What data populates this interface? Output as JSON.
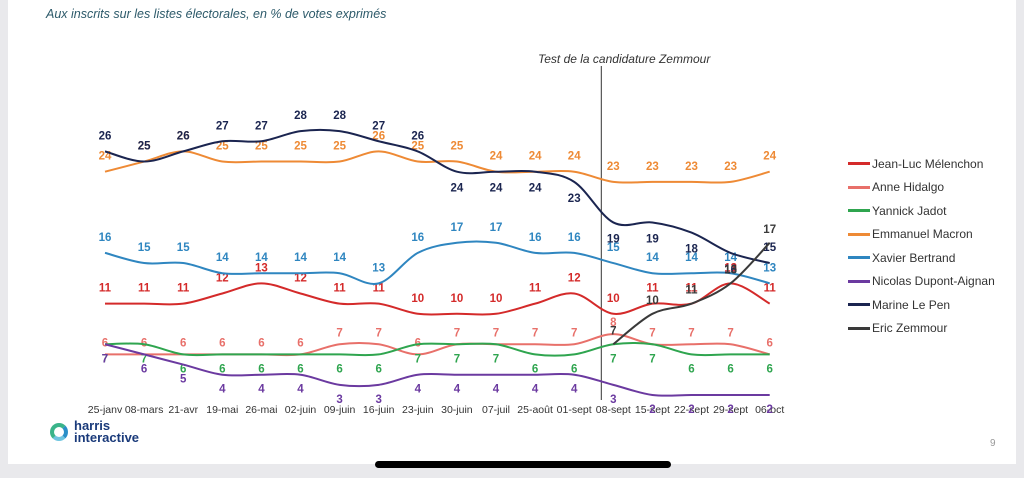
{
  "slide": {
    "subtitle": "Aux inscrits sur les listes électorales, en % de votes exprimés",
    "annotation": "Test de la candidature Zemmour",
    "logo_line1": "harris",
    "logo_line2": "interactive",
    "page_number": "9"
  },
  "chart_data": {
    "type": "line",
    "title": "",
    "subtitle": "Aux inscrits sur les listes électorales, en % de votes exprimés",
    "xlabel": "",
    "ylabel": "",
    "ylim": [
      0,
      30
    ],
    "grid": false,
    "legend_position": "right",
    "annotations": [
      {
        "text": "Test de la candidature Zemmour",
        "at_category": "08-sept",
        "kind": "vertical-line"
      }
    ],
    "categories": [
      "25-janv",
      "08-mars",
      "21-avr",
      "19-mai",
      "26-mai",
      "02-juin",
      "09-juin",
      "16-juin",
      "23-juin",
      "30-juin",
      "07-juil",
      "25-août",
      "01-sept",
      "08-sept",
      "15-sept",
      "22-sept",
      "29-sept",
      "06-oct"
    ],
    "series": [
      {
        "name": "Jean-Luc Mélenchon",
        "color": "#d42a2a",
        "values": [
          11,
          11,
          11,
          12,
          13,
          12,
          11,
          11,
          10,
          10,
          10,
          11,
          12,
          10,
          11,
          11,
          13,
          11
        ]
      },
      {
        "name": "Anne Hidalgo",
        "color": "#e8706a",
        "values": [
          6,
          6,
          6,
          6,
          6,
          6,
          7,
          7,
          6,
          7,
          7,
          7,
          7,
          8,
          7,
          7,
          7,
          6
        ]
      },
      {
        "name": "Yannick Jadot",
        "color": "#2fa54f",
        "values": [
          7,
          7,
          6,
          6,
          6,
          6,
          6,
          6,
          7,
          7,
          7,
          6,
          6,
          7,
          7,
          6,
          6,
          6
        ]
      },
      {
        "name": "Emmanuel Macron",
        "color": "#ee8a35",
        "values": [
          24,
          25,
          26,
          25,
          25,
          25,
          25,
          26,
          25,
          25,
          24,
          24,
          24,
          23,
          23,
          23,
          23,
          24
        ]
      },
      {
        "name": "Xavier Bertrand",
        "color": "#2f86c0",
        "values": [
          16,
          15,
          15,
          14,
          14,
          14,
          14,
          13,
          16,
          17,
          17,
          16,
          16,
          15,
          14,
          14,
          14,
          13
        ]
      },
      {
        "name": "Nicolas Dupont-Aignan",
        "color": "#6b3aa0",
        "values": [
          7,
          6,
          5,
          4,
          4,
          4,
          3,
          3,
          4,
          4,
          4,
          4,
          4,
          3,
          2,
          2,
          2,
          2
        ]
      },
      {
        "name": "Marine Le Pen",
        "color": "#1b2550",
        "values": [
          26,
          25,
          26,
          27,
          27,
          28,
          28,
          27,
          26,
          24,
          24,
          24,
          23,
          19,
          19,
          18,
          16,
          15
        ]
      },
      {
        "name": "Eric Zemmour",
        "color": "#3a3a3a",
        "values": [
          null,
          null,
          null,
          null,
          null,
          null,
          null,
          null,
          null,
          null,
          null,
          null,
          null,
          7,
          10,
          11,
          13,
          17
        ]
      }
    ]
  }
}
